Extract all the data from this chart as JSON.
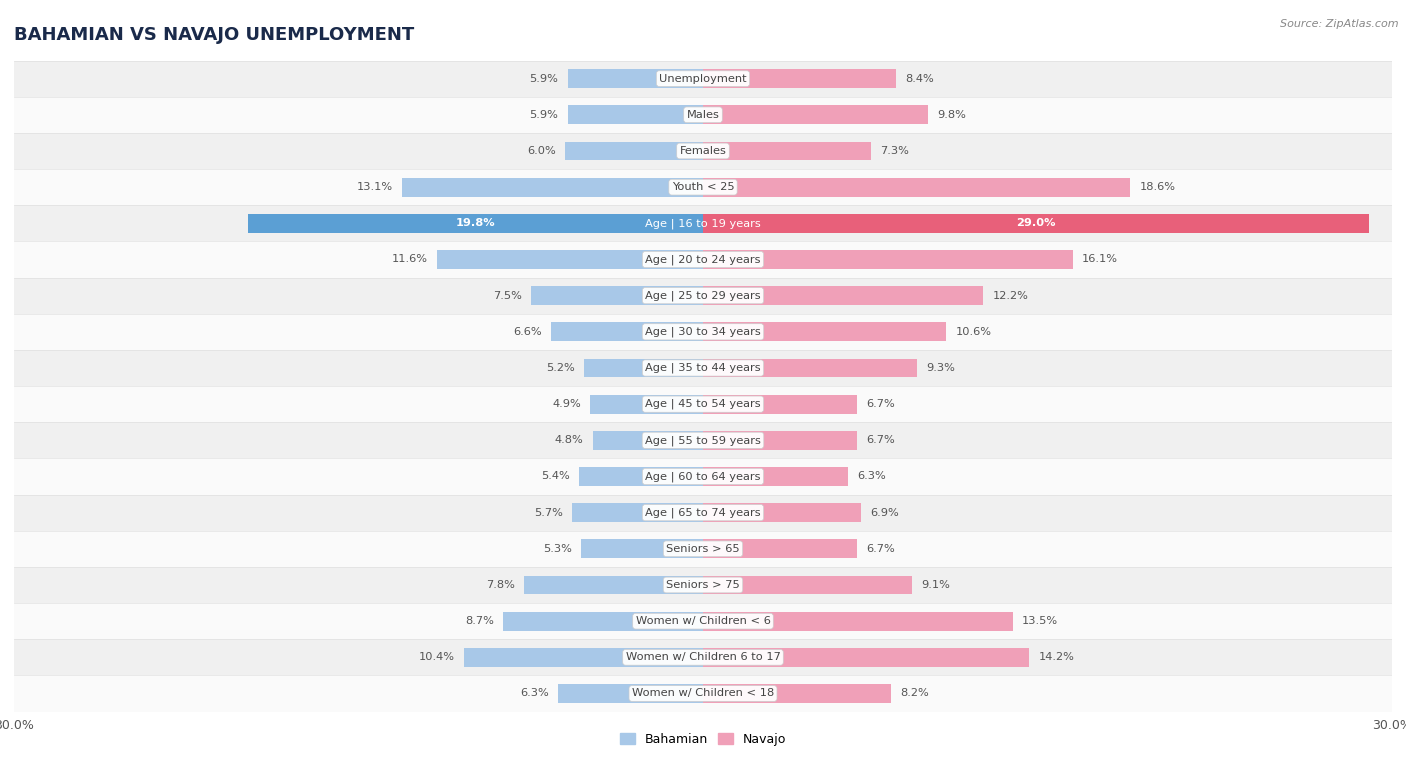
{
  "title": "BAHAMIAN VS NAVAJO UNEMPLOYMENT",
  "source": "Source: ZipAtlas.com",
  "categories": [
    "Unemployment",
    "Males",
    "Females",
    "Youth < 25",
    "Age | 16 to 19 years",
    "Age | 20 to 24 years",
    "Age | 25 to 29 years",
    "Age | 30 to 34 years",
    "Age | 35 to 44 years",
    "Age | 45 to 54 years",
    "Age | 55 to 59 years",
    "Age | 60 to 64 years",
    "Age | 65 to 74 years",
    "Seniors > 65",
    "Seniors > 75",
    "Women w/ Children < 6",
    "Women w/ Children 6 to 17",
    "Women w/ Children < 18"
  ],
  "bahamian": [
    5.9,
    5.9,
    6.0,
    13.1,
    19.8,
    11.6,
    7.5,
    6.6,
    5.2,
    4.9,
    4.8,
    5.4,
    5.7,
    5.3,
    7.8,
    8.7,
    10.4,
    6.3
  ],
  "navajo": [
    8.4,
    9.8,
    7.3,
    18.6,
    29.0,
    16.1,
    12.2,
    10.6,
    9.3,
    6.7,
    6.7,
    6.3,
    6.9,
    6.7,
    9.1,
    13.5,
    14.2,
    8.2
  ],
  "bahamian_color": "#a8c8e8",
  "bahamian_highlight_color": "#5b9fd4",
  "navajo_color": "#f0a0b8",
  "navajo_highlight_color": "#e8607a",
  "highlight_row": 4,
  "row_bg_even": "#f0f0f0",
  "row_bg_odd": "#fafafa",
  "row_border": "#d8d8d8",
  "axis_limit": 30.0,
  "legend_bahamian": "Bahamian",
  "legend_navajo": "Navajo",
  "title_color": "#1a2a4a",
  "label_color": "#555555",
  "highlight_label_color": "#ffffff"
}
